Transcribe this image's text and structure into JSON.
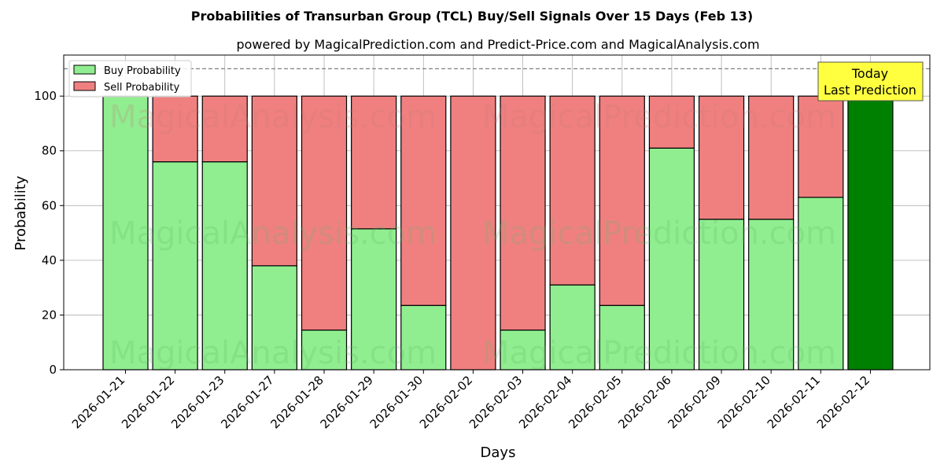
{
  "chart_data": {
    "type": "bar",
    "title": "Probabilities of Transurban Group (TCL) Buy/Sell Signals Over 15 Days (Feb 13)",
    "subtitle": "powered by MagicalPrediction.com and Predict-Price.com and MagicalAnalysis.com",
    "xlabel": "Days",
    "ylabel": "Probability",
    "ylim": [
      0,
      115
    ],
    "yticks": [
      0,
      20,
      40,
      60,
      80,
      100
    ],
    "reference_line": 110,
    "grid": true,
    "legend_position": "top-left",
    "categories": [
      "2026-01-21",
      "2026-01-22",
      "2026-01-23",
      "2026-01-27",
      "2026-01-28",
      "2026-01-29",
      "2026-01-30",
      "2026-02-02",
      "2026-02-03",
      "2026-02-04",
      "2026-02-05",
      "2026-02-06",
      "2026-02-09",
      "2026-02-10",
      "2026-02-11",
      "2026-02-12"
    ],
    "series": [
      {
        "name": "Buy Probability",
        "color": "#90ee90",
        "values": [
          100,
          76,
          76,
          38,
          14.5,
          51.5,
          23.5,
          0,
          14.5,
          31,
          23.5,
          81,
          55,
          55,
          63,
          100
        ]
      },
      {
        "name": "Sell Probability",
        "color": "#f08080",
        "values": [
          0,
          24,
          24,
          62,
          85.5,
          48.5,
          76.5,
          100,
          85.5,
          69,
          76.5,
          19,
          45,
          45,
          37,
          0
        ]
      }
    ],
    "highlight": {
      "category": "2026-02-12",
      "color": "#008000"
    },
    "annotation": {
      "line1": "Today",
      "line2": "Last Prediction",
      "bg_color": "#ffff40"
    },
    "watermarks": [
      "MagicalAnalysis.com",
      "MagicalPrediction.com"
    ]
  }
}
